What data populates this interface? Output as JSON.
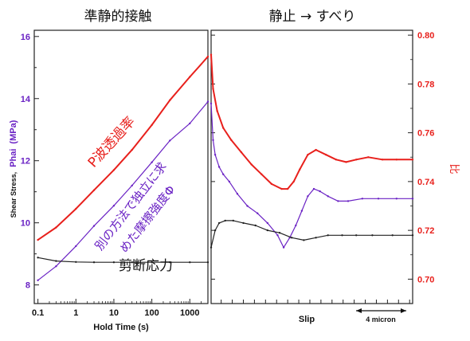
{
  "chart_data": [
    {
      "type": "line",
      "title": "準静的接触",
      "xlabel": "Hold Time (s)",
      "ylabel_black": "Shear Stress,",
      "ylabel_purple": "Phai",
      "ylabel_unit": "(MPa)",
      "x_scale": "log",
      "xlim": [
        0.08,
        3000
      ],
      "ylim": [
        7.4,
        16.2
      ],
      "x_ticks": [
        0.1,
        1,
        10,
        100,
        1000
      ],
      "x_tick_labels": [
        "0.1",
        "1",
        "10",
        "100",
        "1000"
      ],
      "y_ticks": [
        8,
        10,
        12,
        14,
        16
      ],
      "y_tick_labels": [
        "8",
        "10",
        "12",
        "14",
        "16"
      ],
      "annotations": {
        "red": "P波透過率",
        "purple_1": "別の方法で独立に求",
        "purple_2": "めた摩擦強度Φ",
        "black": "剪断応力"
      },
      "series": [
        {
          "color": "#e8201c",
          "x": [
            0.1,
            0.3,
            1,
            3,
            10,
            30,
            100,
            300,
            1000,
            3000
          ],
          "y": [
            9.45,
            9.85,
            10.45,
            11.05,
            11.7,
            12.35,
            13.15,
            13.95,
            14.7,
            15.35
          ]
        },
        {
          "color": "#6a22c4",
          "x": [
            0.1,
            0.3,
            1,
            3,
            10,
            30,
            100,
            300,
            1000,
            3000
          ],
          "y": [
            8.15,
            8.6,
            9.25,
            9.9,
            10.55,
            11.2,
            11.95,
            12.65,
            13.2,
            13.9
          ]
        },
        {
          "color": "#222222",
          "x": [
            0.1,
            0.3,
            1,
            3,
            10,
            30,
            100,
            300,
            1000,
            3000
          ],
          "y": [
            8.88,
            8.77,
            8.74,
            8.73,
            8.73,
            8.73,
            8.73,
            8.73,
            8.73,
            8.73
          ]
        }
      ]
    },
    {
      "type": "line",
      "title": "静止 → すべり",
      "xlabel": "Slip",
      "scale_bar_label": "4 micron",
      "right_ylabel": "比",
      "ylim_right": [
        0.69,
        0.802
      ],
      "y_ticks_right": [
        0.7,
        0.72,
        0.74,
        0.76,
        0.78,
        0.8
      ],
      "y_tick_labels_right": [
        "0.70",
        "0.72",
        "0.74",
        "0.76",
        "0.78",
        "0.80"
      ],
      "xlim": [
        0,
        100
      ],
      "series": [
        {
          "color": "#e8201c",
          "x": [
            0,
            1,
            3,
            6,
            10,
            15,
            20,
            25,
            30,
            35,
            38,
            41,
            44,
            48,
            52,
            57,
            62,
            67,
            72,
            78,
            85,
            92,
            100
          ],
          "y": [
            0.792,
            0.778,
            0.769,
            0.762,
            0.757,
            0.752,
            0.747,
            0.743,
            0.739,
            0.737,
            0.737,
            0.74,
            0.745,
            0.751,
            0.753,
            0.751,
            0.749,
            0.748,
            0.749,
            0.75,
            0.749,
            0.749,
            0.749
          ]
        },
        {
          "color": "#6a22c4",
          "x": [
            0,
            1,
            2,
            4,
            6,
            9,
            13,
            18,
            23,
            28,
            33,
            36,
            39,
            42,
            45,
            48,
            51,
            54,
            58,
            63,
            68,
            75,
            83,
            92,
            100
          ],
          "y": [
            0.772,
            0.757,
            0.751,
            0.746,
            0.743,
            0.74,
            0.735,
            0.73,
            0.727,
            0.723,
            0.718,
            0.713,
            0.717,
            0.722,
            0.728,
            0.734,
            0.737,
            0.736,
            0.734,
            0.732,
            0.732,
            0.733,
            0.733,
            0.733,
            0.733
          ]
        },
        {
          "color": "#222222",
          "x": [
            0,
            2,
            4,
            7,
            11,
            16,
            22,
            28,
            34,
            40,
            46,
            52,
            58,
            65,
            72,
            80,
            90,
            100
          ],
          "y": [
            0.713,
            0.72,
            0.723,
            0.724,
            0.724,
            0.723,
            0.722,
            0.72,
            0.719,
            0.717,
            0.716,
            0.717,
            0.718,
            0.718,
            0.718,
            0.718,
            0.718,
            0.718
          ]
        }
      ]
    }
  ]
}
